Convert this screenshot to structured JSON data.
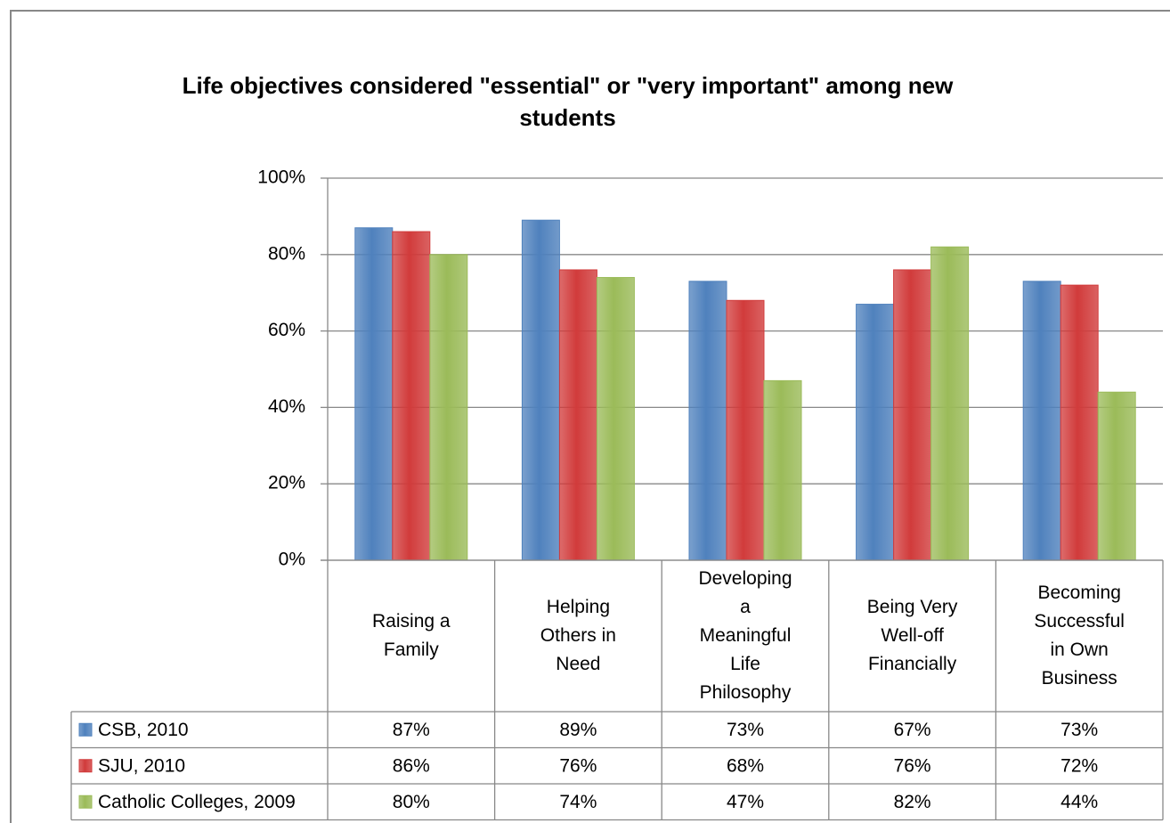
{
  "chart_data": {
    "type": "bar",
    "title": "Life objectives considered \"essential\" or \"very important\" among new students",
    "categories": [
      "Raising a Family",
      "Helping Others in Need",
      "Developing a Meaningful Life Philosophy",
      "Being Very Well-off Financially",
      "Becoming Successful in Own Business"
    ],
    "series": [
      {
        "name": "CSB, 2010",
        "color": "#4f81bd",
        "values": [
          87,
          89,
          73,
          67,
          73
        ],
        "value_labels": [
          "87%",
          "89%",
          "73%",
          "67%",
          "73%"
        ]
      },
      {
        "name": "SJU, 2010",
        "color": "#d13b3b",
        "values": [
          86,
          76,
          68,
          76,
          72
        ],
        "value_labels": [
          "86%",
          "76%",
          "68%",
          "76%",
          "72%"
        ]
      },
      {
        "name": "Catholic Colleges, 2009",
        "color": "#9bbb59",
        "values": [
          80,
          74,
          47,
          82,
          44
        ],
        "value_labels": [
          "80%",
          "74%",
          "47%",
          "82%",
          "44%"
        ]
      }
    ],
    "ylim": [
      0,
      100
    ],
    "yticks": [
      {
        "value": 0,
        "label": "0%"
      },
      {
        "value": 20,
        "label": "20%"
      },
      {
        "value": 40,
        "label": "40%"
      },
      {
        "value": 60,
        "label": "60%"
      },
      {
        "value": 80,
        "label": "80%"
      },
      {
        "value": 100,
        "label": "100%"
      }
    ],
    "grid": true
  }
}
